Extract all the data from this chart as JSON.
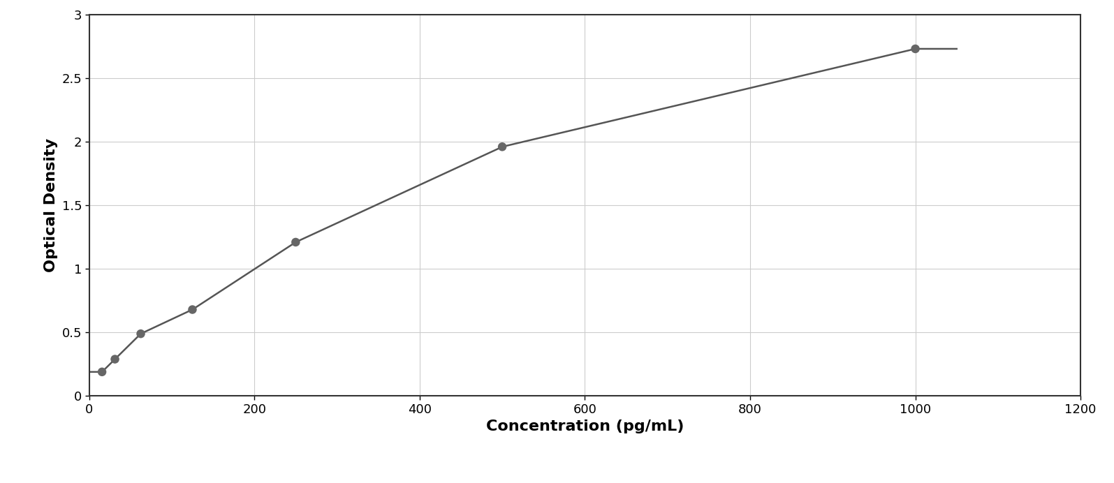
{
  "x_data": [
    15.625,
    31.25,
    62.5,
    125,
    250,
    500,
    1000
  ],
  "y_data": [
    0.19,
    0.29,
    0.49,
    0.68,
    1.21,
    1.96,
    2.73
  ],
  "xlabel": "Concentration (pg/mL)",
  "ylabel": "Optical Density",
  "xlim": [
    0,
    1200
  ],
  "ylim": [
    0,
    3
  ],
  "xticks": [
    0,
    200,
    400,
    600,
    800,
    1000,
    1200
  ],
  "yticks": [
    0,
    0.5,
    1.0,
    1.5,
    2.0,
    2.5,
    3.0
  ],
  "marker_color": "#666666",
  "line_color": "#555555",
  "marker_size": 9,
  "line_width": 1.8,
  "background_color": "#ffffff",
  "plot_bg_color": "#ffffff",
  "grid_color": "#cccccc",
  "border_color": "#333333",
  "xlabel_fontsize": 16,
  "ylabel_fontsize": 16,
  "tick_fontsize": 13,
  "xlabel_fontweight": "bold",
  "ylabel_fontweight": "bold",
  "curve_x_end": 1050
}
